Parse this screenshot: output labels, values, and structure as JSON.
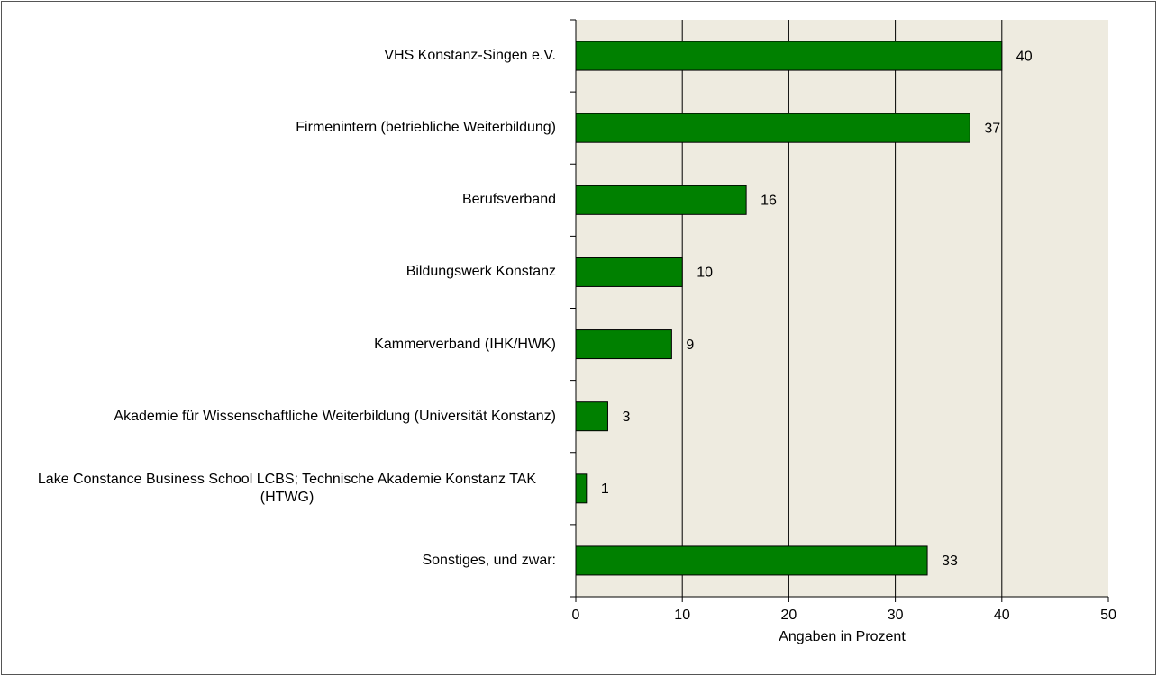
{
  "chart_data": {
    "type": "bar",
    "orientation": "horizontal",
    "categories": [
      "VHS Konstanz-Singen e.V.",
      "Firmenintern (betriebliche Weiterbildung)",
      "Berufsverband",
      "Bildungswerk Konstanz",
      "Kammerverband (IHK/HWK)",
      "Akademie für Wissenschaftliche Weiterbildung (Universität Konstanz)",
      "Lake Constance Business School LCBS; Technische Akademie Konstanz TAK (HTWG)",
      "Sonstiges, und zwar:"
    ],
    "values": [
      40,
      37,
      16,
      10,
      9,
      3,
      1,
      33
    ],
    "color": "#008000",
    "x_label": "Angaben in Prozent",
    "xlim": [
      0,
      50
    ],
    "xticks": [
      0,
      10,
      20,
      30,
      40,
      50
    ],
    "grid": true
  }
}
